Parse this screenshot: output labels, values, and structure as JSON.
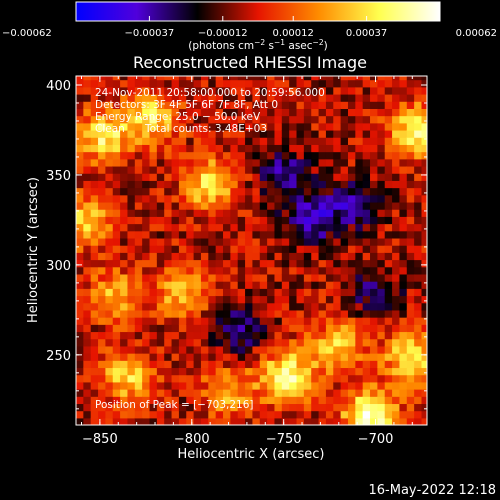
{
  "chart_data": {
    "type": "heatmap",
    "title": "Reconstructed RHESSI Image",
    "xlabel": "Heliocentric X (arcsec)",
    "ylabel": "Heliocentric Y (arcsec)",
    "x_range": [
      -863,
      -672
    ],
    "y_range": [
      211,
      405
    ],
    "x_ticks": [
      -850,
      -800,
      -750,
      -700
    ],
    "x_tick_labels": [
      "−850",
      "−800",
      "−750",
      "−700"
    ],
    "y_ticks": [
      250,
      300,
      350,
      400
    ],
    "y_tick_labels": [
      "250",
      "300",
      "350",
      "400"
    ],
    "colorbar": {
      "range": [
        -0.00062,
        0.00062
      ],
      "ticks": [
        -0.00062,
        -0.00037,
        -0.00012,
        0.00012,
        0.00037,
        0.00062
      ],
      "tick_labels": [
        "−0.00062",
        "−0.00037",
        "−0.00012",
        "0.00012",
        "0.00037",
        "0.00062"
      ],
      "units_label_parts": [
        "(photons cm",
        "−2",
        " s",
        "−1",
        " asec",
        "−2",
        ")"
      ],
      "colors": [
        "#0000ff",
        "#5000dc",
        "#000000",
        "#e61400",
        "#ff8c00",
        "#ffff50",
        "#ffffff"
      ]
    },
    "annotations": {
      "time_range": "24‐Nov‐2011 20:58:00.000 to 20:59:56.000",
      "detectors": "Detectors: 3F 4F 5F 6F 7F 8F, Att 0",
      "energy_range": "Energy Range: 25.0 − 50.0 keV",
      "clean_label": "Clean",
      "total_counts": "Total counts: 3.48E+03",
      "peak": "Position of Peak = [−703,216]"
    },
    "features": [
      {
        "x": -848,
        "y": 372,
        "value": 0.00045
      },
      {
        "x": -822,
        "y": 382,
        "value": 0.00042
      },
      {
        "x": -790,
        "y": 345,
        "value": 0.00044
      },
      {
        "x": -858,
        "y": 325,
        "value": 0.0004
      },
      {
        "x": -805,
        "y": 285,
        "value": 0.00035
      },
      {
        "x": -842,
        "y": 283,
        "value": 0.00032
      },
      {
        "x": -835,
        "y": 238,
        "value": 0.00038
      },
      {
        "x": -780,
        "y": 230,
        "value": 0.0003
      },
      {
        "x": -748,
        "y": 238,
        "value": 0.00055
      },
      {
        "x": -720,
        "y": 255,
        "value": 0.00038
      },
      {
        "x": -703,
        "y": 216,
        "value": 0.00062
      },
      {
        "x": -680,
        "y": 248,
        "value": 0.00048
      },
      {
        "x": -678,
        "y": 375,
        "value": 0.00048
      },
      {
        "x": -735,
        "y": 325,
        "value": -0.00035
      },
      {
        "x": -750,
        "y": 350,
        "value": -0.0003
      },
      {
        "x": -712,
        "y": 335,
        "value": -0.00032
      },
      {
        "x": -775,
        "y": 265,
        "value": -0.0003
      },
      {
        "x": -700,
        "y": 285,
        "value": -0.00025
      }
    ],
    "grid": false
  },
  "footer": {
    "timestamp": "16‐May‐2022 12:18"
  }
}
